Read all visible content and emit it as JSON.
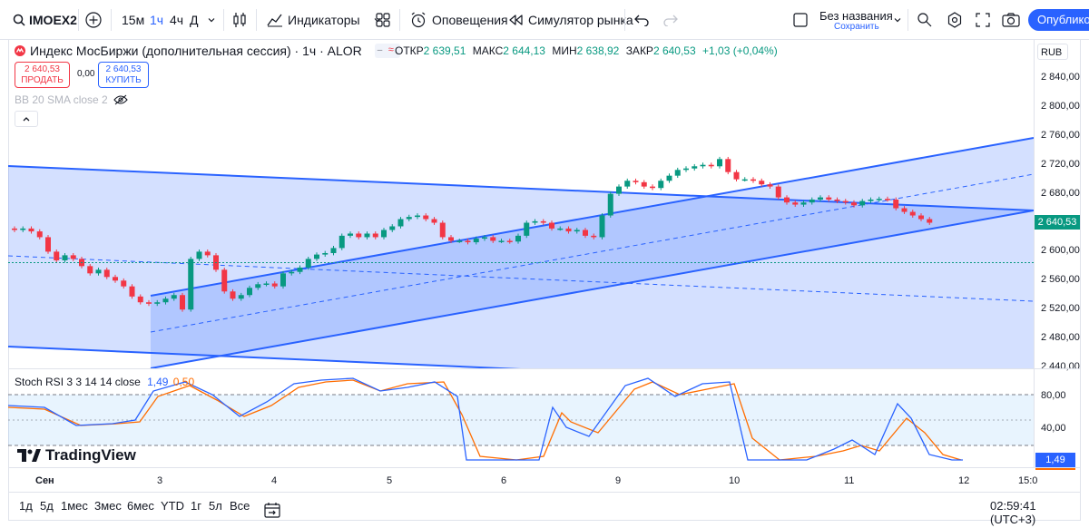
{
  "toolbar": {
    "symbol": "IMOEX2",
    "intervals": [
      "15м",
      "1ч",
      "4ч",
      "Д"
    ],
    "active_interval": "1ч",
    "indicators_label": "Индикаторы",
    "alerts_label": "Оповещения",
    "replay_label": "Симулятор рынка",
    "layout_name": "Без названия",
    "layout_save": "Сохранить",
    "publish_label": "Опубликов"
  },
  "legend": {
    "title": "Индекс МосБиржи (дополнительная сессия) · 1ч · ALOR",
    "open_label": "ОТКР",
    "open_value": "2 639,51",
    "high_label": "МАКС",
    "high_value": "2 644,13",
    "low_label": "МИН",
    "low_value": "2 638,92",
    "close_label": "ЗАКР",
    "close_value": "2 640,53",
    "change": "+1,03 (+0,04%)",
    "sell_price": "2 640,53",
    "sell_label": "ПРОДАТЬ",
    "spread": "0,00",
    "buy_price": "2 640,53",
    "buy_label": "КУПИТЬ",
    "bb_label": "BB 20 SMA close 2"
  },
  "currency": "RUB",
  "price_axis": [
    "2 840,00",
    "2 800,00",
    "2 760,00",
    "2 720,00",
    "2 680,00",
    "2 640,00",
    "2 600,00",
    "2 560,00",
    "2 520,00",
    "2 480,00",
    "2 440,00"
  ],
  "last_price": "2 640,53",
  "stoch": {
    "label": "Stoch RSI 3 3 14 14 close",
    "k_value": "1,49",
    "d_value": "0,50",
    "axis": [
      "80,00",
      "40,00"
    ],
    "tag_value": "1,49"
  },
  "time_axis": [
    "Сен",
    "3",
    "4",
    "5",
    "6",
    "9",
    "10",
    "11",
    "12",
    "15:0"
  ],
  "ranges": [
    "1д",
    "5д",
    "1мес",
    "3мес",
    "6мес",
    "YTD",
    "1г",
    "5л",
    "Все"
  ],
  "clock": "02:59:41 (UTC+3)",
  "brand": "TradingView",
  "colors": {
    "up": "#089981",
    "down": "#f23645",
    "channel": "#2962ff",
    "k": "#2962ff",
    "d": "#ff6d00"
  },
  "chart_data": {
    "type": "candlestick",
    "ylim": [
      2440,
      2840
    ],
    "x_labels": [
      "Сен",
      "3",
      "4",
      "5",
      "6",
      "9",
      "10",
      "11",
      "12"
    ],
    "closes": [
      2630,
      2632,
      2628,
      2620,
      2600,
      2588,
      2595,
      2590,
      2580,
      2570,
      2575,
      2565,
      2560,
      2552,
      2538,
      2530,
      2528,
      2530,
      2535,
      2540,
      2520,
      2590,
      2600,
      2595,
      2575,
      2545,
      2535,
      2540,
      2550,
      2555,
      2556,
      2552,
      2570,
      2572,
      2578,
      2590,
      2596,
      2598,
      2605,
      2622,
      2625,
      2620,
      2625,
      2620,
      2630,
      2635,
      2645,
      2648,
      2650,
      2645,
      2640,
      2620,
      2615,
      2615,
      2613,
      2618,
      2620,
      2615,
      2615,
      2614,
      2622,
      2640,
      2642,
      2640,
      2632,
      2632,
      2628,
      2630,
      2622,
      2620,
      2650,
      2680,
      2690,
      2698,
      2696,
      2690,
      2688,
      2698,
      2705,
      2713,
      2715,
      2718,
      2720,
      2718,
      2728,
      2710,
      2700,
      2700,
      2698,
      2693,
      2690,
      2675,
      2668,
      2665,
      2668,
      2672,
      2675,
      2672,
      2670,
      2668,
      2664,
      2670,
      2672,
      2673,
      2672,
      2660,
      2655,
      2650,
      2645,
      2640
    ]
  }
}
